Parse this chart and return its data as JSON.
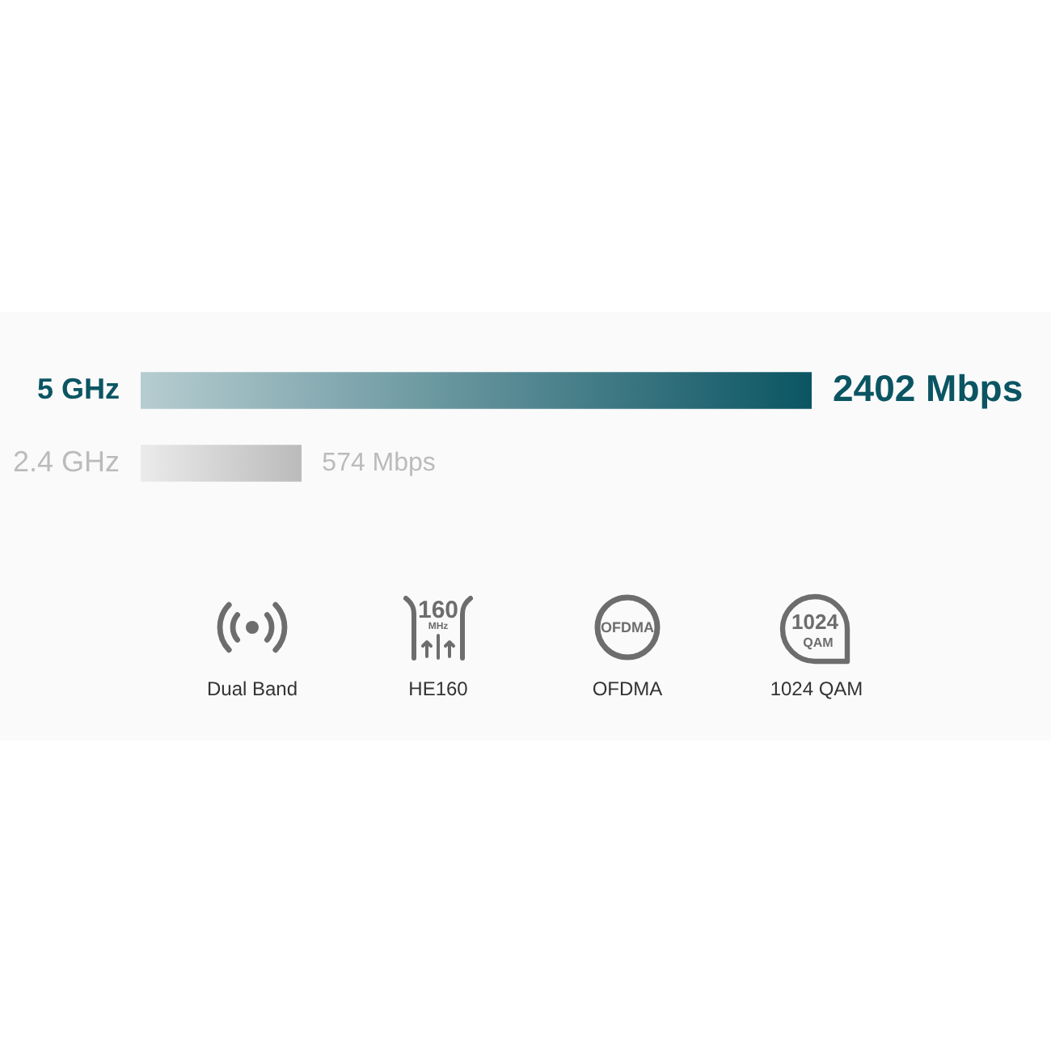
{
  "chart_data": {
    "type": "bar",
    "orientation": "horizontal",
    "categories": [
      "5 GHz",
      "2.4 GHz"
    ],
    "values": [
      2402,
      574
    ],
    "colors": [
      "#0b5563",
      "#bbbbbb"
    ],
    "value_labels": [
      "2402 Mbps",
      "574 Mbps"
    ],
    "xlim": [
      0,
      2402
    ],
    "tick_labels": "y",
    "annotations": [
      "Dual Band",
      "160 MHz",
      "HE160",
      "OFDMA",
      "OFDMA",
      "1024 QAM",
      "1024 QAM"
    ]
  }
}
